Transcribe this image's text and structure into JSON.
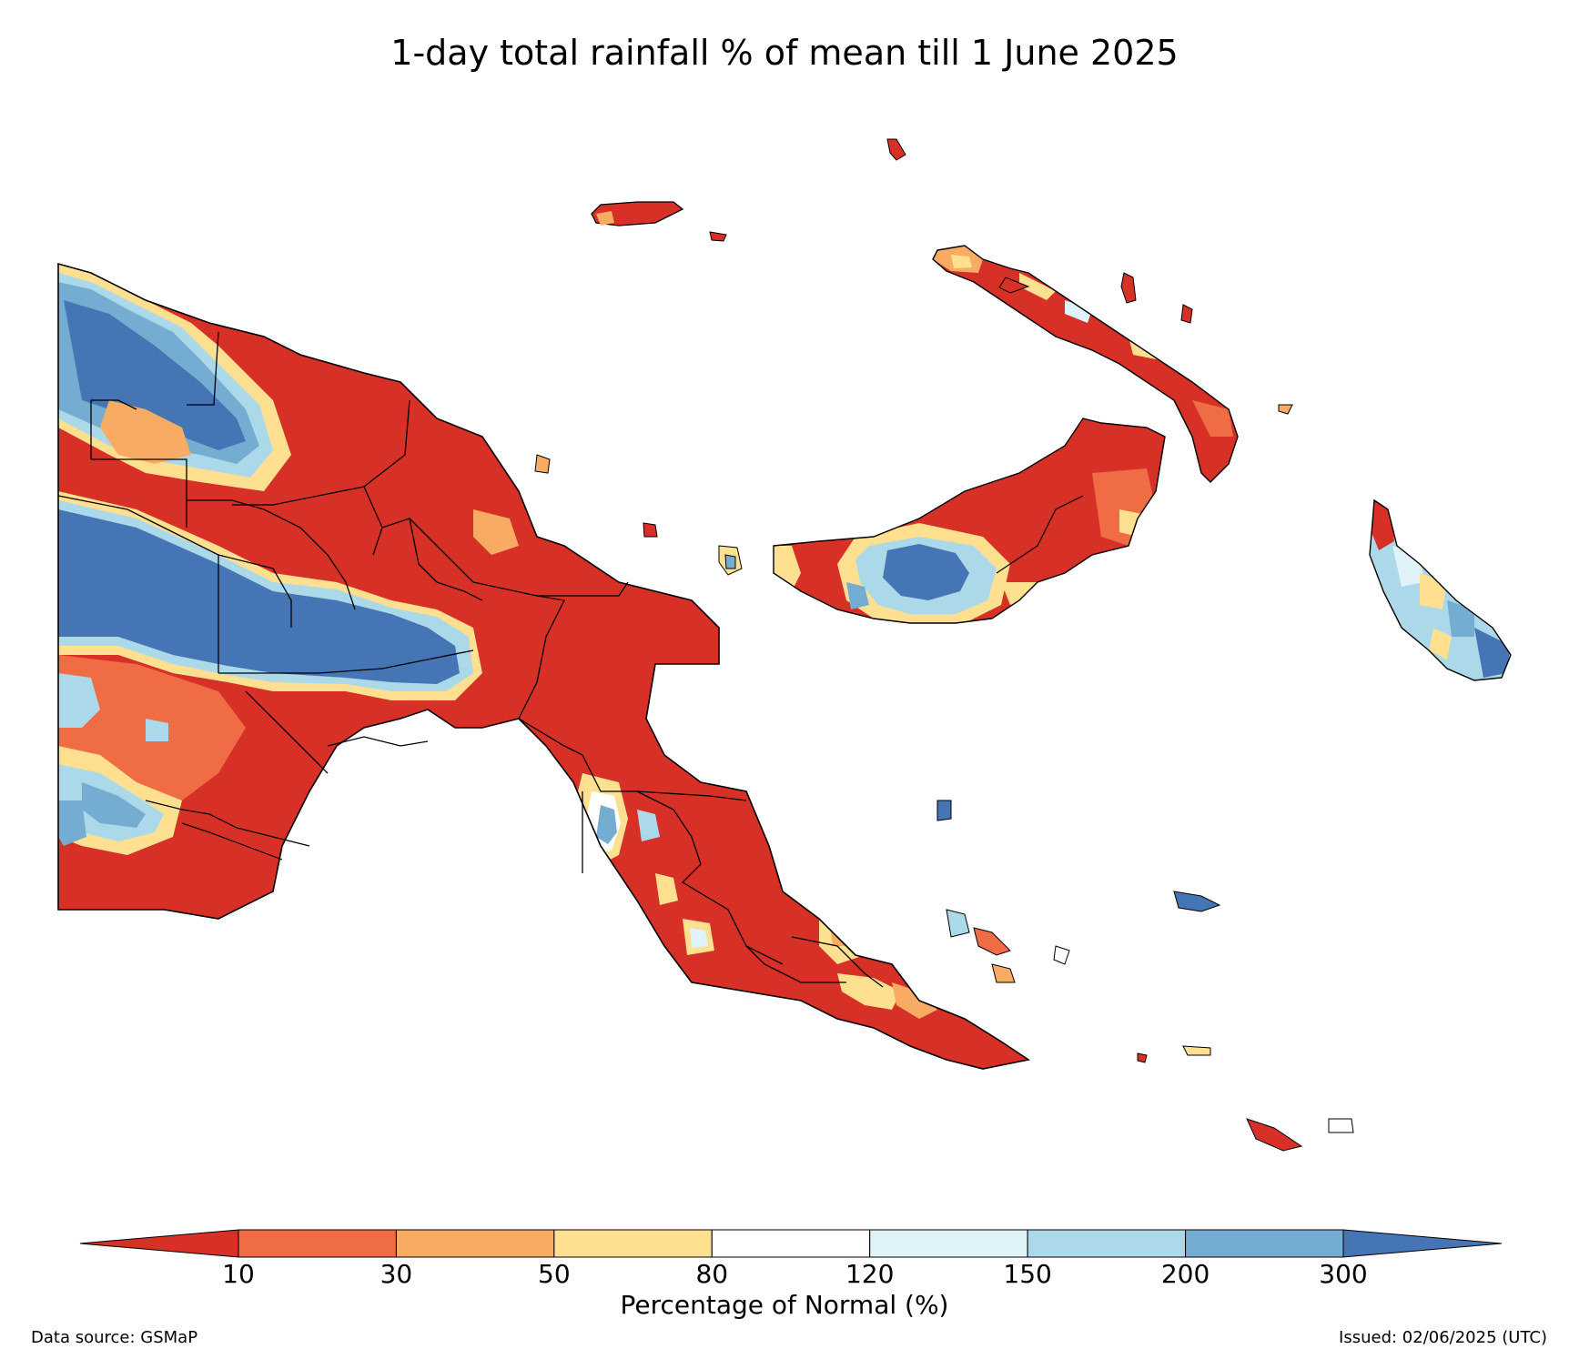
{
  "map": {
    "title": "1-day total rainfall % of mean till 1 June 2025",
    "region": "Papua New Guinea",
    "layers": [
      "rainfall-percent-of-normal",
      "province-boundaries",
      "coastline"
    ]
  },
  "legend": {
    "label": "Percentage of Normal (%)",
    "ticks": [
      "10",
      "30",
      "50",
      "80",
      "120",
      "150",
      "200",
      "300"
    ],
    "bins": [
      {
        "range": "<10",
        "color": "#d73027"
      },
      {
        "range": "10-30",
        "color": "#ef6c45"
      },
      {
        "range": "30-50",
        "color": "#f8ab63"
      },
      {
        "range": "50-80",
        "color": "#fee090"
      },
      {
        "range": "80-120",
        "color": "#ffffff"
      },
      {
        "range": "120-150",
        "color": "#e0f3f8"
      },
      {
        "range": "150-200",
        "color": "#abd9e9"
      },
      {
        "range": "200-300",
        "color": "#74add1"
      },
      {
        "range": ">300",
        "color": "#4575b4"
      }
    ]
  },
  "footer": {
    "source": "Data source: GSMaP",
    "issued": "Issued: 02/06/2025 (UTC)"
  }
}
